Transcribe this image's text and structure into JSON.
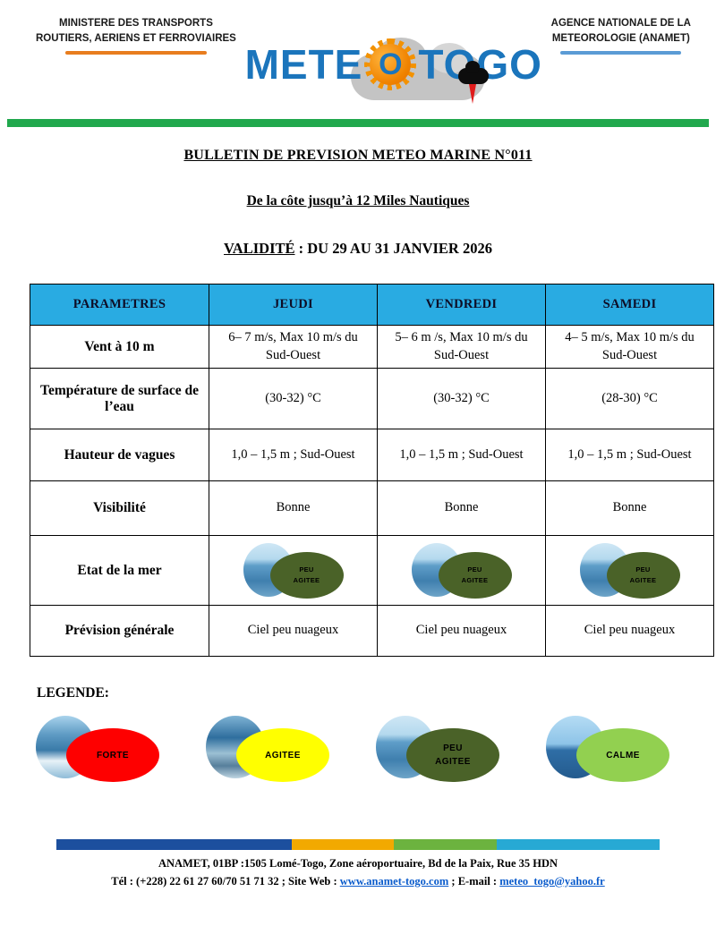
{
  "header": {
    "ministry_line1": "MINISTERE DES TRANSPORTS",
    "ministry_line2": "ROUTIERS, AERIENS ET FERROVIAIRES",
    "agency_line1": "AGENCE NATIONALE DE LA",
    "agency_line2": "METEOROLOGIE (ANAMET)",
    "logo": {
      "text_left": "METE",
      "sun_letter": "O",
      "text_right": "TOGO"
    }
  },
  "titles": {
    "bulletin": "BULLETIN DE PREVISION METEO MARINE N°011",
    "subtitle": "De la côte jusqu’à 12 Miles Nautiques",
    "validity_label": "VALIDITÉ",
    "validity_value": " : DU 29 AU 31 JANVIER 2026"
  },
  "table": {
    "headers": [
      "PARAMETRES",
      "JEUDI",
      "VENDREDI",
      "SAMEDI"
    ],
    "header_bg": "#29abe2",
    "rows": {
      "vent": {
        "param": "Vent à 10 m",
        "values": [
          "6– 7 m/s, Max 10 m/s du Sud-Ouest",
          "5– 6 m /s, Max 10 m/s du Sud-Ouest",
          "4– 5 m/s, Max 10 m/s du Sud-Ouest"
        ]
      },
      "temperature": {
        "param": "Température de surface de l’eau",
        "values": [
          "(30-32) °C",
          "(30-32) °C",
          "(28-30) °C"
        ]
      },
      "vagues": {
        "param": "Hauteur de vagues",
        "values": [
          "1,0 – 1,5 m ; Sud-Ouest",
          "1,0 – 1,5 m ; Sud-Ouest",
          "1,0 – 1,5 m ; Sud-Ouest"
        ]
      },
      "visibilite": {
        "param": "Visibilité",
        "values": [
          "Bonne",
          "Bonne",
          "Bonne"
        ]
      },
      "etat": {
        "param": "Etat de la mer",
        "sea_state_line1": "PEU",
        "sea_state_line2": "AGITEE",
        "sea_state_color": "#4a6228"
      },
      "prevision": {
        "param": "Prévision générale",
        "values": [
          "Ciel peu nuageux",
          "Ciel peu nuageux",
          "Ciel peu nuageux"
        ]
      }
    }
  },
  "legend": {
    "label": "LEGENDE:",
    "items": {
      "forte": {
        "name": "FORTE",
        "color": "#fe0000"
      },
      "agitee": {
        "name": "AGITEE",
        "color": "#ffff00"
      },
      "peu_agitee": {
        "line1": "PEU",
        "line2": "AGITEE",
        "color": "#4a6228"
      },
      "calme": {
        "name": "CALME",
        "color": "#92d050"
      }
    }
  },
  "footer": {
    "address": "ANAMET, 01BP :1505 Lomé-Togo, Zone aéroportuaire, Bd de la Paix, Rue 35 HDN",
    "tel_prefix": "Tél : (+228) 22 61 27 60/70 51 71 32 ; Site Web : ",
    "website": "www.anamet-togo.com",
    "email_prefix": " ; E-mail : ",
    "email": "meteo_togo@yahoo.fr",
    "bar_colors": [
      "#1c4f9e",
      "#f2a900",
      "#6cb33f",
      "#27a9d4"
    ]
  }
}
